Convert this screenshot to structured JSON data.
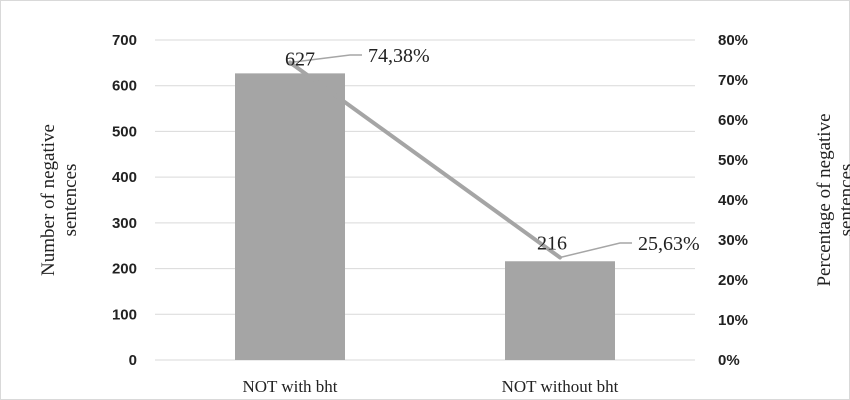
{
  "chart_data": {
    "type": "bar",
    "categories": [
      "NOT with bht",
      "NOT without bht"
    ],
    "series": [
      {
        "type": "bar",
        "axis": "left",
        "values": [
          627,
          216
        ],
        "value_labels": [
          "627",
          "216"
        ]
      },
      {
        "type": "line",
        "axis": "right",
        "values": [
          74.38,
          25.63
        ],
        "value_labels": [
          "74,38%",
          "25,63%"
        ]
      }
    ],
    "ylabel": [
      "Number of negative",
      "sentences"
    ],
    "ylabel_right": [
      "Percentage of negative",
      "sentences"
    ],
    "ylim": [
      0,
      700
    ],
    "ylim_right": [
      0,
      80
    ],
    "yticks": [
      "0",
      "100",
      "200",
      "300",
      "400",
      "500",
      "600",
      "700"
    ],
    "yticks_right": [
      "0%",
      "10%",
      "20%",
      "30%",
      "40%",
      "50%",
      "60%",
      "70%",
      "80%"
    ],
    "grid": true,
    "colors": {
      "bar": "#a5a5a5",
      "line": "#a5a5a5",
      "grid": "#d9d9d9",
      "leader": "#a6a6a6"
    }
  }
}
